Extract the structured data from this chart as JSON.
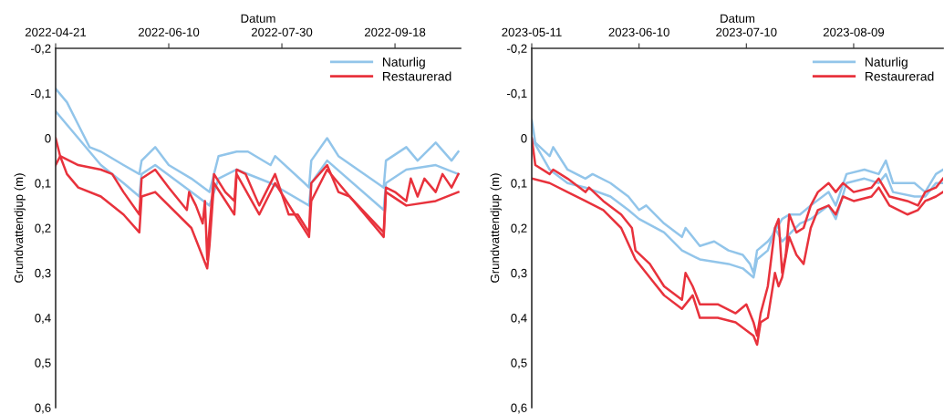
{
  "chart_data": [
    {
      "type": "line",
      "xlabel": "Datum",
      "ylabel": "Grundvattendjup (m)",
      "legend": "top right",
      "xlim": [
        "2022-04-21",
        "2022-10-17"
      ],
      "xticks": [
        "2022-04-21",
        "2022-06-10",
        "2022-07-30",
        "2022-09-18"
      ],
      "ylim": [
        0.6,
        -0.2
      ],
      "yticks": [
        {
          "value": -0.2,
          "label": "-0,2"
        },
        {
          "value": -0.1,
          "label": "-0,1"
        },
        0,
        {
          "value": 0.1,
          "label": "0,1"
        },
        {
          "value": 0.2,
          "label": "0,2"
        },
        {
          "value": 0.3,
          "label": "0,3"
        },
        {
          "value": 0.4,
          "label": "0,4"
        },
        {
          "value": 0.5,
          "label": "0,5"
        },
        {
          "value": 0.6,
          "label": "0,6"
        }
      ],
      "series": [
        {
          "name": "Naturlig",
          "color": "#92c5ea",
          "x": [
            "2022-04-21",
            "2022-04-26",
            "2022-05-01",
            "2022-05-06",
            "2022-05-11",
            "2022-05-21",
            "2022-05-28",
            "2022-05-29",
            "2022-06-04",
            "2022-06-10",
            "2022-06-20",
            "2022-06-28",
            "2022-07-02",
            "2022-07-10",
            "2022-07-15",
            "2022-07-25",
            "2022-07-27",
            "2022-08-09",
            "2022-08-11",
            "2022-08-12",
            "2022-08-19",
            "2022-08-24",
            "2022-09-13",
            "2022-09-14",
            "2022-09-23",
            "2022-09-28",
            "2022-10-06",
            "2022-10-13",
            "2022-10-16"
          ],
          "values": [
            -0.11,
            -0.08,
            -0.03,
            0.02,
            0.03,
            0.06,
            0.08,
            0.05,
            0.02,
            0.06,
            0.09,
            0.12,
            0.04,
            0.03,
            0.03,
            0.06,
            0.04,
            0.1,
            0.11,
            0.05,
            0.0,
            0.04,
            0.11,
            0.05,
            0.02,
            0.05,
            0.01,
            0.05,
            0.03
          ]
        },
        {
          "color": "#92c5ea",
          "x": [
            "2022-04-21",
            "2022-05-01",
            "2022-05-11",
            "2022-05-21",
            "2022-05-28",
            "2022-05-29",
            "2022-06-04",
            "2022-06-20",
            "2022-06-28",
            "2022-07-02",
            "2022-07-10",
            "2022-07-25",
            "2022-08-11",
            "2022-08-12",
            "2022-08-19",
            "2022-09-13",
            "2022-09-14",
            "2022-09-23",
            "2022-10-06",
            "2022-10-16"
          ],
          "values": [
            -0.06,
            0.0,
            0.06,
            0.1,
            0.13,
            0.08,
            0.06,
            0.12,
            0.15,
            0.09,
            0.07,
            0.1,
            0.15,
            0.1,
            0.05,
            0.16,
            0.1,
            0.07,
            0.06,
            0.08
          ]
        },
        {
          "name": "Restaurerad",
          "color": "#e8323c",
          "x": [
            "2022-04-21",
            "2022-04-23",
            "2022-05-01",
            "2022-05-11",
            "2022-05-16",
            "2022-05-21",
            "2022-05-28",
            "2022-05-29",
            "2022-06-04",
            "2022-06-10",
            "2022-06-18",
            "2022-06-19",
            "2022-06-22",
            "2022-06-25",
            "2022-06-26",
            "2022-06-27",
            "2022-06-28",
            "2022-06-30",
            "2022-07-05",
            "2022-07-09",
            "2022-07-10",
            "2022-07-14",
            "2022-07-20",
            "2022-07-27",
            "2022-08-02",
            "2022-08-06",
            "2022-08-11",
            "2022-08-12",
            "2022-08-19",
            "2022-08-24",
            "2022-08-29",
            "2022-09-13",
            "2022-09-14",
            "2022-09-18",
            "2022-09-23",
            "2022-09-25",
            "2022-09-28",
            "2022-10-01",
            "2022-10-06",
            "2022-10-09",
            "2022-10-13",
            "2022-10-16"
          ],
          "values": [
            0.0,
            0.04,
            0.06,
            0.07,
            0.08,
            0.12,
            0.17,
            0.09,
            0.07,
            0.11,
            0.16,
            0.12,
            0.15,
            0.19,
            0.14,
            0.27,
            0.2,
            0.08,
            0.12,
            0.14,
            0.07,
            0.08,
            0.15,
            0.08,
            0.17,
            0.17,
            0.21,
            0.1,
            0.06,
            0.12,
            0.13,
            0.21,
            0.11,
            0.12,
            0.14,
            0.09,
            0.13,
            0.09,
            0.12,
            0.08,
            0.11,
            0.08
          ]
        },
        {
          "color": "#e8323c",
          "x": [
            "2022-04-21",
            "2022-04-23",
            "2022-04-26",
            "2022-05-01",
            "2022-05-11",
            "2022-05-21",
            "2022-05-28",
            "2022-05-29",
            "2022-06-04",
            "2022-06-20",
            "2022-06-27",
            "2022-06-28",
            "2022-06-30",
            "2022-07-09",
            "2022-07-10",
            "2022-07-20",
            "2022-07-27",
            "2022-08-11",
            "2022-08-12",
            "2022-08-19",
            "2022-09-13",
            "2022-09-14",
            "2022-09-23",
            "2022-10-06",
            "2022-10-16"
          ],
          "values": [
            0.06,
            0.04,
            0.08,
            0.11,
            0.13,
            0.17,
            0.21,
            0.13,
            0.12,
            0.2,
            0.29,
            0.24,
            0.1,
            0.17,
            0.08,
            0.17,
            0.1,
            0.22,
            0.14,
            0.07,
            0.22,
            0.12,
            0.15,
            0.14,
            0.12
          ]
        }
      ]
    },
    {
      "type": "line",
      "xlabel": "Datum",
      "ylabel": "Grundvattendjup (m)",
      "legend": "top right",
      "xlim": [
        "2023-05-11",
        "2023-09-03"
      ],
      "xticks": [
        "2023-05-11",
        "2023-06-10",
        "2023-07-10",
        "2023-08-09"
      ],
      "ylim": [
        0.6,
        -0.2
      ],
      "yticks": [
        {
          "value": -0.2,
          "label": "-0,2"
        },
        {
          "value": -0.1,
          "label": "-0,1"
        },
        0,
        {
          "value": 0.1,
          "label": "0,1"
        },
        {
          "value": 0.2,
          "label": "0,2"
        },
        {
          "value": 0.3,
          "label": "0,3"
        },
        {
          "value": 0.4,
          "label": "0,4"
        },
        {
          "value": 0.5,
          "label": "0,5"
        },
        {
          "value": 0.6,
          "label": "0,6"
        }
      ],
      "series": [
        {
          "name": "Naturlig",
          "color": "#92c5ea",
          "x": [
            "2023-05-11",
            "2023-05-12",
            "2023-05-16",
            "2023-05-17",
            "2023-05-21",
            "2023-05-26",
            "2023-05-28",
            "2023-06-02",
            "2023-06-07",
            "2023-06-10",
            "2023-06-12",
            "2023-06-17",
            "2023-06-22",
            "2023-06-23",
            "2023-06-27",
            "2023-07-01",
            "2023-07-05",
            "2023-07-09",
            "2023-07-11",
            "2023-07-12",
            "2023-07-13",
            "2023-07-16",
            "2023-07-17",
            "2023-07-20",
            "2023-07-22",
            "2023-07-25",
            "2023-07-28",
            "2023-08-02",
            "2023-08-04",
            "2023-08-07",
            "2023-08-12",
            "2023-08-16",
            "2023-08-18",
            "2023-08-20",
            "2023-08-26",
            "2023-08-29",
            "2023-09-01",
            "2023-09-03"
          ],
          "values": [
            -0.04,
            0.01,
            0.04,
            0.02,
            0.07,
            0.09,
            0.08,
            0.1,
            0.13,
            0.16,
            0.15,
            0.19,
            0.22,
            0.2,
            0.24,
            0.23,
            0.25,
            0.26,
            0.28,
            0.3,
            0.25,
            0.23,
            0.22,
            0.18,
            0.17,
            0.17,
            0.15,
            0.12,
            0.15,
            0.08,
            0.07,
            0.08,
            0.05,
            0.1,
            0.1,
            0.12,
            0.08,
            0.07
          ]
        },
        {
          "color": "#92c5ea",
          "x": [
            "2023-05-11",
            "2023-05-16",
            "2023-05-21",
            "2023-05-26",
            "2023-06-02",
            "2023-06-07",
            "2023-06-10",
            "2023-06-17",
            "2023-06-22",
            "2023-06-27",
            "2023-07-05",
            "2023-07-09",
            "2023-07-12",
            "2023-07-13",
            "2023-07-16",
            "2023-07-18",
            "2023-07-20",
            "2023-07-25",
            "2023-07-28",
            "2023-08-02",
            "2023-08-04",
            "2023-08-07",
            "2023-08-12",
            "2023-08-16",
            "2023-08-18",
            "2023-08-20",
            "2023-08-26",
            "2023-08-29",
            "2023-09-01",
            "2023-09-03"
          ],
          "values": [
            0.0,
            0.07,
            0.1,
            0.11,
            0.13,
            0.16,
            0.18,
            0.21,
            0.25,
            0.27,
            0.28,
            0.29,
            0.31,
            0.27,
            0.25,
            0.2,
            0.23,
            0.19,
            0.18,
            0.15,
            0.18,
            0.1,
            0.09,
            0.1,
            0.08,
            0.12,
            0.13,
            0.13,
            0.1,
            0.1
          ]
        },
        {
          "name": "Restaurerad",
          "color": "#e8323c",
          "x": [
            "2023-05-11",
            "2023-05-12",
            "2023-05-16",
            "2023-05-17",
            "2023-05-21",
            "2023-05-26",
            "2023-05-27",
            "2023-05-31",
            "2023-06-05",
            "2023-06-08",
            "2023-06-09",
            "2023-06-13",
            "2023-06-17",
            "2023-06-22",
            "2023-06-23",
            "2023-06-25",
            "2023-06-27",
            "2023-07-02",
            "2023-07-07",
            "2023-07-10",
            "2023-07-12",
            "2023-07-13",
            "2023-07-14",
            "2023-07-16",
            "2023-07-18",
            "2023-07-19",
            "2023-07-20",
            "2023-07-21",
            "2023-07-22",
            "2023-07-24",
            "2023-07-26",
            "2023-07-28",
            "2023-07-30",
            "2023-08-02",
            "2023-08-04",
            "2023-08-06",
            "2023-08-09",
            "2023-08-14",
            "2023-08-16",
            "2023-08-19",
            "2023-08-24",
            "2023-08-27",
            "2023-08-29",
            "2023-09-01",
            "2023-09-03"
          ],
          "values": [
            0.0,
            0.06,
            0.08,
            0.07,
            0.09,
            0.12,
            0.11,
            0.14,
            0.17,
            0.2,
            0.25,
            0.28,
            0.33,
            0.36,
            0.3,
            0.33,
            0.37,
            0.37,
            0.39,
            0.37,
            0.41,
            0.44,
            0.39,
            0.33,
            0.2,
            0.18,
            0.3,
            0.26,
            0.17,
            0.21,
            0.2,
            0.15,
            0.12,
            0.1,
            0.12,
            0.1,
            0.12,
            0.11,
            0.09,
            0.13,
            0.14,
            0.15,
            0.12,
            0.11,
            0.09
          ]
        },
        {
          "color": "#e8323c",
          "x": [
            "2023-05-11",
            "2023-05-16",
            "2023-05-21",
            "2023-05-26",
            "2023-05-31",
            "2023-06-05",
            "2023-06-09",
            "2023-06-13",
            "2023-06-17",
            "2023-06-22",
            "2023-06-25",
            "2023-06-27",
            "2023-07-02",
            "2023-07-07",
            "2023-07-12",
            "2023-07-13",
            "2023-07-14",
            "2023-07-16",
            "2023-07-18",
            "2023-07-19",
            "2023-07-20",
            "2023-07-22",
            "2023-07-24",
            "2023-07-26",
            "2023-07-28",
            "2023-07-30",
            "2023-08-02",
            "2023-08-04",
            "2023-08-06",
            "2023-08-09",
            "2023-08-14",
            "2023-08-16",
            "2023-08-19",
            "2023-08-24",
            "2023-08-27",
            "2023-08-29",
            "2023-09-01",
            "2023-09-03"
          ],
          "values": [
            0.09,
            0.1,
            0.12,
            0.14,
            0.16,
            0.2,
            0.27,
            0.31,
            0.35,
            0.38,
            0.35,
            0.4,
            0.4,
            0.41,
            0.44,
            0.46,
            0.41,
            0.4,
            0.3,
            0.33,
            0.31,
            0.22,
            0.26,
            0.28,
            0.2,
            0.16,
            0.15,
            0.17,
            0.13,
            0.14,
            0.13,
            0.11,
            0.15,
            0.17,
            0.16,
            0.14,
            0.13,
            0.12
          ]
        }
      ]
    }
  ]
}
